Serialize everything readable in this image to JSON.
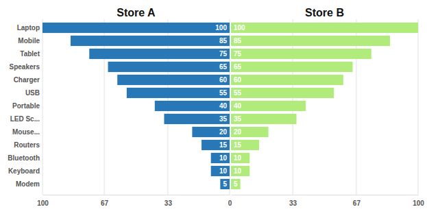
{
  "chart_data": {
    "type": "bar",
    "orientation": "horizontal",
    "categories": [
      "Laptop",
      "Mobile",
      "Tablet",
      "Speakers",
      "Charger",
      "USB",
      "Portable",
      "LED Sc...",
      "Mouse...",
      "Routers",
      "Bluetooth",
      "Keyboard",
      "Modem"
    ],
    "series": [
      {
        "name": "Store A",
        "color": "#2878b8",
        "values": [
          100,
          85,
          75,
          65,
          60,
          55,
          40,
          35,
          20,
          15,
          10,
          10,
          5
        ]
      },
      {
        "name": "Store B",
        "color": "#b0eb7c",
        "values": [
          100,
          85,
          75,
          65,
          60,
          55,
          40,
          35,
          20,
          15,
          10,
          10,
          5
        ]
      }
    ],
    "xlim": [
      0,
      100
    ],
    "xticks": [
      0,
      33,
      67,
      100
    ],
    "grid": true,
    "data_labels": true
  }
}
